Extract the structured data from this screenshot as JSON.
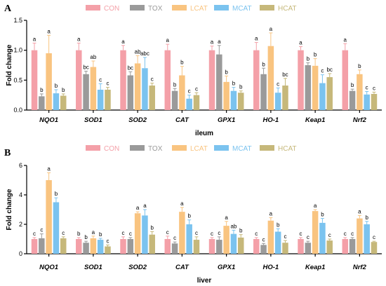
{
  "chart_data": [
    {
      "type": "bar",
      "panel_label": "A",
      "title": "",
      "xlabel": "ileum",
      "ylabel": "Fold change",
      "ylim": [
        0,
        1.5
      ],
      "yticks": [
        "0.0",
        "0.5",
        "1.0",
        "1.5"
      ],
      "categories": [
        "NQO1",
        "SOD1",
        "SOD2",
        "CAT",
        "GPX1",
        "HO-1",
        "Keap1",
        "Nrf2"
      ],
      "legend_placement": "top",
      "series": [
        {
          "name": "CON",
          "color": "#f4a0a8",
          "values": [
            1.0,
            1.0,
            1.0,
            1.0,
            1.0,
            1.0,
            1.0,
            1.0
          ],
          "errors": [
            0.12,
            0.12,
            0.08,
            0.1,
            0.07,
            0.13,
            0.06,
            0.11
          ],
          "letters": [
            "a",
            "a",
            "a",
            "a",
            "a",
            "a",
            "a",
            "a"
          ]
        },
        {
          "name": "TOX",
          "color": "#9a9a9a",
          "values": [
            0.23,
            0.6,
            0.58,
            0.32,
            0.93,
            0.6,
            0.75,
            0.32
          ],
          "errors": [
            0.04,
            0.05,
            0.06,
            0.04,
            0.15,
            0.1,
            0.04,
            0.03
          ],
          "letters": [
            "b",
            "bc",
            "bc",
            "b",
            "a",
            "b",
            "b",
            "b"
          ]
        },
        {
          "name": "LCAT",
          "color": "#f9c480",
          "values": [
            0.95,
            0.72,
            0.78,
            0.58,
            0.47,
            1.07,
            0.74,
            0.6
          ],
          "errors": [
            0.3,
            0.1,
            0.13,
            0.15,
            0.1,
            0.22,
            0.12,
            0.07
          ],
          "letters": [
            "a",
            "ab",
            "ab",
            "b",
            "b",
            "a",
            "b",
            "b"
          ]
        },
        {
          "name": "MCAT",
          "color": "#7bc3ef",
          "values": [
            0.28,
            0.34,
            0.7,
            0.19,
            0.32,
            0.29,
            0.45,
            0.26
          ],
          "errors": [
            0.06,
            0.1,
            0.18,
            0.06,
            0.06,
            0.08,
            0.14,
            0.05
          ],
          "letters": [
            "b",
            "c",
            "abc",
            "c",
            "b",
            "c",
            "c",
            "c"
          ]
        },
        {
          "name": "HCAT",
          "color": "#c6b87a",
          "values": [
            0.24,
            0.34,
            0.41,
            0.25,
            0.29,
            0.41,
            0.55,
            0.27
          ],
          "errors": [
            0.03,
            0.04,
            0.04,
            0.04,
            0.03,
            0.12,
            0.06,
            0.03
          ],
          "letters": [
            "b",
            "c",
            "c",
            "c",
            "b",
            "bc",
            "bc",
            "c"
          ]
        }
      ]
    },
    {
      "type": "bar",
      "panel_label": "B",
      "title": "",
      "xlabel": "liver",
      "ylabel": "Fold change",
      "ylim": [
        0,
        6
      ],
      "yticks": [
        "0",
        "2",
        "4",
        "6"
      ],
      "categories": [
        "NQO1",
        "SOD1",
        "SOD2",
        "CAT",
        "GPX1",
        "HO-1",
        "Keap1",
        "Nrf2"
      ],
      "legend_placement": "top",
      "series": [
        {
          "name": "CON",
          "color": "#f4a0a8",
          "values": [
            1.0,
            1.0,
            1.0,
            1.0,
            1.0,
            1.0,
            1.0,
            1.0
          ],
          "errors": [
            0.1,
            0.1,
            0.15,
            0.2,
            0.1,
            0.1,
            0.1,
            0.1
          ],
          "letters": [
            "c",
            "b",
            "c",
            "c",
            "c",
            "c",
            "c",
            "c"
          ]
        },
        {
          "name": "TOX",
          "color": "#9a9a9a",
          "values": [
            1.05,
            0.75,
            1.0,
            0.7,
            0.95,
            0.6,
            0.75,
            1.0
          ],
          "errors": [
            0.3,
            0.1,
            0.1,
            0.1,
            0.2,
            0.1,
            0.1,
            0.1
          ],
          "letters": [
            "c",
            "b",
            "c",
            "c",
            "c",
            "c",
            "c",
            "c"
          ]
        },
        {
          "name": "LCAT",
          "color": "#f9c480",
          "values": [
            5.0,
            1.05,
            2.75,
            2.85,
            1.9,
            2.25,
            2.9,
            2.4
          ],
          "errors": [
            0.5,
            0.15,
            0.1,
            0.3,
            0.3,
            0.2,
            0.1,
            0.2
          ],
          "letters": [
            "a",
            "a",
            "a",
            "a",
            "a",
            "a",
            "a",
            "a"
          ]
        },
        {
          "name": "MCAT",
          "color": "#7bc3ef",
          "values": [
            3.5,
            0.95,
            2.6,
            2.0,
            1.35,
            1.5,
            2.1,
            2.0
          ],
          "errors": [
            0.3,
            0.1,
            0.4,
            0.3,
            0.25,
            0.2,
            0.3,
            0.2
          ],
          "letters": [
            "b",
            "b",
            "a",
            "b",
            "ab",
            "b",
            "b",
            "b"
          ]
        },
        {
          "name": "HCAT",
          "color": "#c6b87a",
          "values": [
            1.05,
            0.5,
            1.3,
            0.95,
            1.1,
            0.75,
            0.9,
            0.8
          ],
          "errors": [
            0.1,
            0.1,
            0.2,
            0.2,
            0.2,
            0.15,
            0.1,
            0.05
          ],
          "letters": [
            "c",
            "c",
            "b",
            "c",
            "b",
            "c",
            "c",
            "c"
          ]
        }
      ]
    }
  ]
}
